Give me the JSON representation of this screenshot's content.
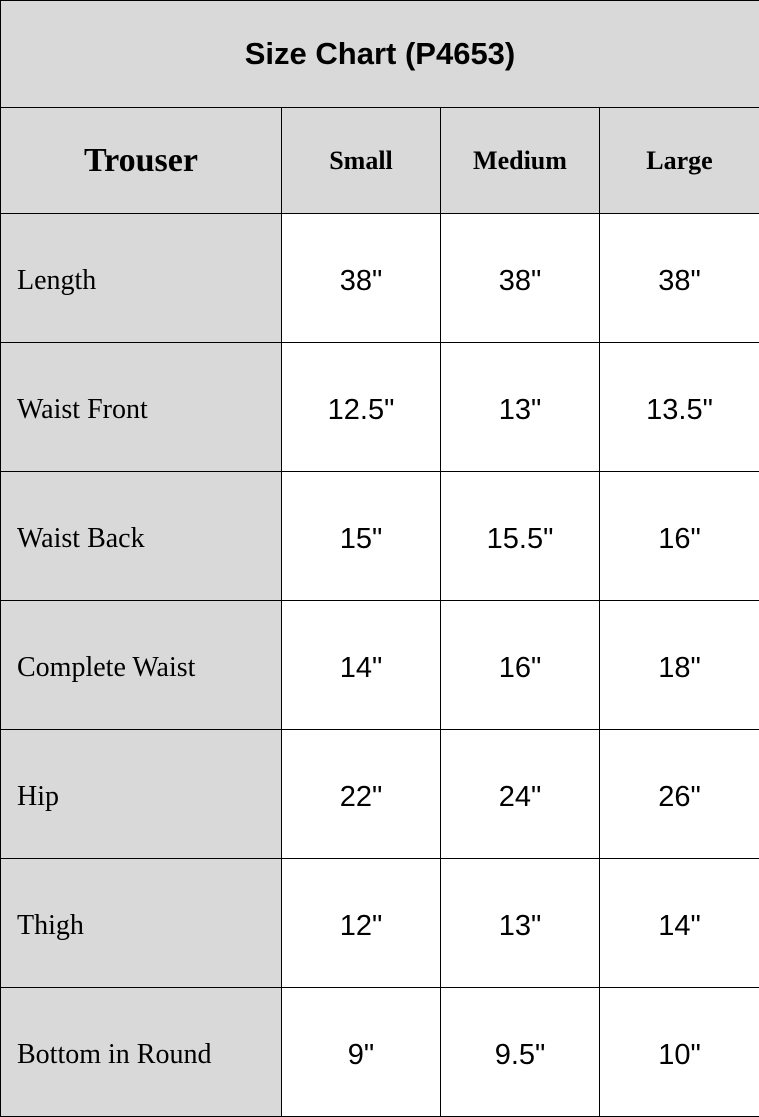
{
  "title": "Size Chart (P4653)",
  "header": {
    "first": "Trouser",
    "sizes": [
      "Small",
      "Medium",
      "Large"
    ]
  },
  "rows": [
    {
      "label": "Length",
      "values": [
        "38\"",
        "38\"",
        "38\""
      ]
    },
    {
      "label": "Waist Front",
      "values": [
        "12.5\"",
        "13\"",
        "13.5\""
      ]
    },
    {
      "label": "Waist Back",
      "values": [
        "15\"",
        "15.5\"",
        "16\""
      ]
    },
    {
      "label": "Complete Waist",
      "values": [
        "14\"",
        "16\"",
        "18\""
      ]
    },
    {
      "label": "Hip",
      "values": [
        "22\"",
        "24\"",
        "26\""
      ]
    },
    {
      "label": "Thigh",
      "values": [
        "12\"",
        "13\"",
        "14\""
      ]
    },
    {
      "label": "Bottom in Round",
      "values": [
        "9\"",
        "9.5\"",
        "10\""
      ]
    }
  ],
  "colors": {
    "header_bg": "#d9d9d9",
    "cell_bg": "#ffffff",
    "border": "#000000"
  }
}
